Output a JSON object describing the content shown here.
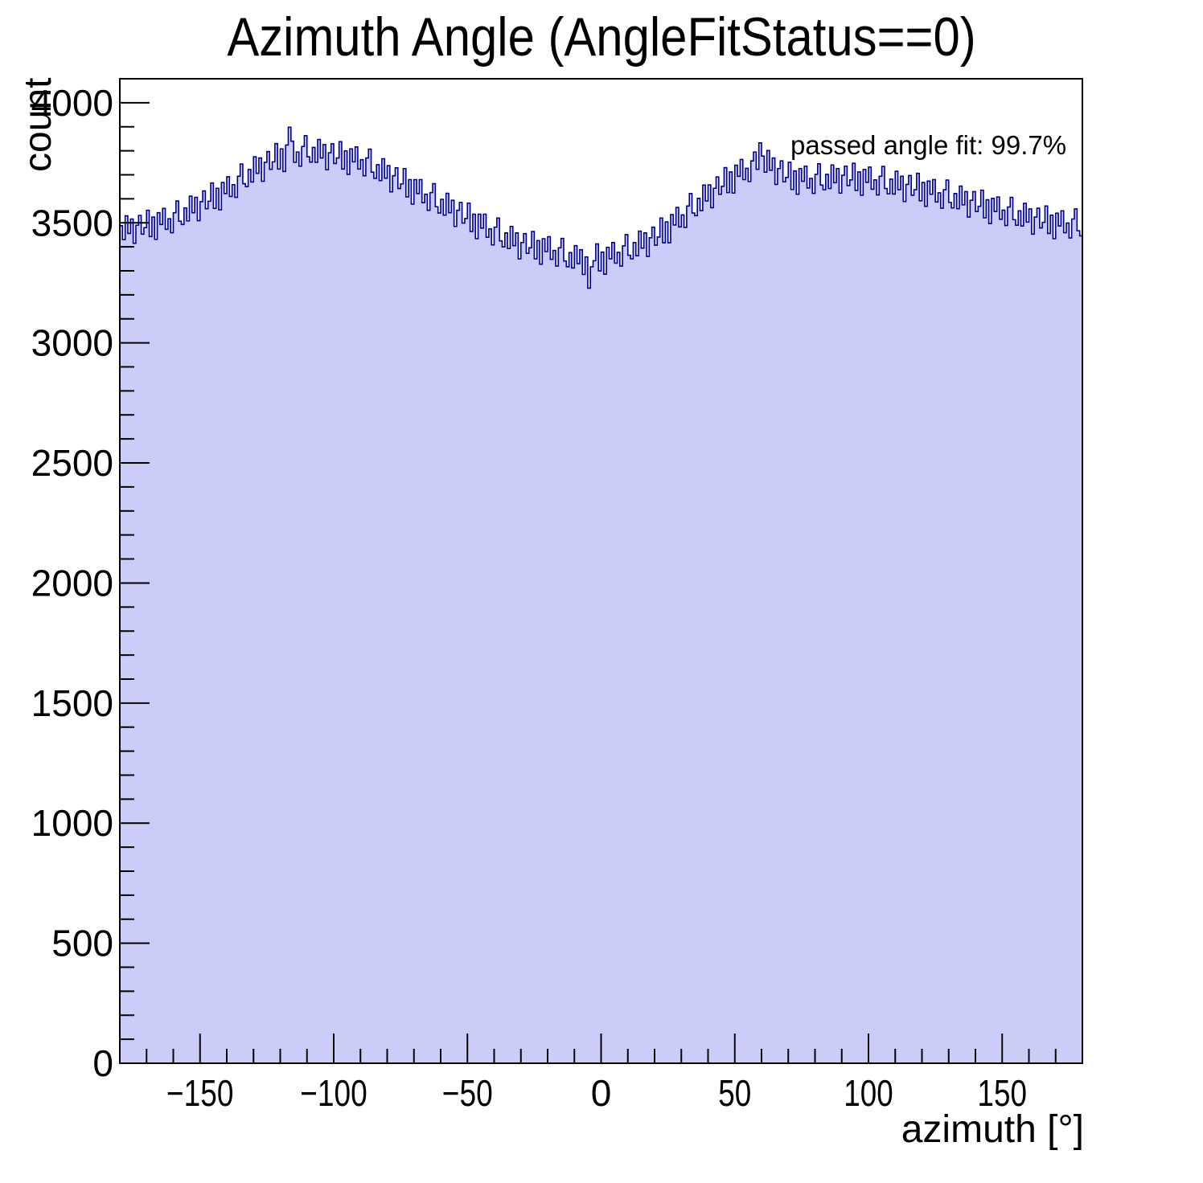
{
  "title": "Azimuth Angle (AngleFitStatus==0)",
  "annotation": "passed angle fit: 99.7%",
  "colors": {
    "histogram_fill": "#ccccf8",
    "histogram_line": "#000090",
    "frame": "#000000",
    "text": "#000000",
    "background": "#ffffff"
  },
  "axes": {
    "x": {
      "label": "azimuth [°]",
      "min": -180,
      "max": 180,
      "major_ticks": [
        -150,
        -100,
        -50,
        0,
        50,
        100,
        150
      ],
      "minor_step": 10
    },
    "y": {
      "label": "count",
      "min": 0,
      "max": 4100,
      "major_ticks": [
        0,
        500,
        1000,
        1500,
        2000,
        2500,
        3000,
        3500,
        4000
      ],
      "minor_step": 100
    }
  },
  "chart_data": {
    "type": "bar",
    "title": "Azimuth Angle (AngleFitStatus==0)",
    "xlabel": "azimuth [°]",
    "ylabel": "count",
    "xlim": [
      -180,
      180
    ],
    "ylim": [
      0,
      4100
    ],
    "grid": false,
    "legend": "none",
    "x_start": -180,
    "bin_width": 1,
    "values": [
      3488,
      3430,
      3529,
      3456,
      3516,
      3415,
      3490,
      3531,
      3453,
      3480,
      3552,
      3443,
      3524,
      3431,
      3542,
      3493,
      3560,
      3473,
      3517,
      3459,
      3542,
      3591,
      3507,
      3493,
      3562,
      3508,
      3611,
      3542,
      3606,
      3509,
      3588,
      3633,
      3559,
      3590,
      3666,
      3560,
      3644,
      3554,
      3668,
      3622,
      3692,
      3610,
      3659,
      3606,
      3694,
      3745,
      3663,
      3651,
      3722,
      3670,
      3775,
      3706,
      3770,
      3673,
      3752,
      3797,
      3723,
      3754,
      3830,
      3724,
      3808,
      3714,
      3824,
      3898,
      3840,
      3752,
      3795,
      3736,
      3818,
      3863,
      3775,
      3753,
      3814,
      3752,
      3847,
      3770,
      3826,
      3721,
      3792,
      3829,
      3747,
      3770,
      3838,
      3724,
      3800,
      3702,
      3808,
      3754,
      3816,
      3724,
      3763,
      3696,
      3770,
      3807,
      3711,
      3685,
      3742,
      3676,
      3767,
      3686,
      3738,
      3629,
      3696,
      3729,
      3643,
      3662,
      3726,
      3608,
      3680,
      3578,
      3680,
      3622,
      3680,
      3584,
      3619,
      3552,
      3626,
      3663,
      3567,
      3541,
      3598,
      3532,
      3623,
      3542,
      3594,
      3485,
      3552,
      3585,
      3499,
      3518,
      3582,
      3464,
      3536,
      3434,
      3536,
      3478,
      3536,
      3440,
      3475,
      3408,
      3482,
      3520,
      3425,
      3400,
      3458,
      3393,
      3485,
      3405,
      3458,
      3350,
      3418,
      3455,
      3373,
      3396,
      3464,
      3350,
      3426,
      3328,
      3434,
      3380,
      3442,
      3348,
      3385,
      3320,
      3396,
      3435,
      3341,
      3317,
      3376,
      3312,
      3405,
      3330,
      3388,
      3285,
      3358,
      3228,
      3317,
      3342,
      3412,
      3300,
      3378,
      3286,
      3398,
      3350,
      3418,
      3332,
      3377,
      3320,
      3404,
      3451,
      3365,
      3350,
      3418,
      3363,
      3465,
      3395,
      3458,
      3360,
      3438,
      3482,
      3407,
      3441,
      3520,
      3417,
      3504,
      3417,
      3534,
      3491,
      3564,
      3483,
      3533,
      3481,
      3570,
      3622,
      3541,
      3530,
      3602,
      3551,
      3657,
      3591,
      3658,
      3563,
      3644,
      3691,
      3619,
      3652,
      3730,
      3626,
      3712,
      3624,
      3740,
      3694,
      3764,
      3680,
      3727,
      3672,
      3758,
      3795,
      3723,
      3833,
      3778,
      3711,
      3801,
      3719,
      3770,
      3660,
      3726,
      3758,
      3671,
      3689,
      3752,
      3639,
      3716,
      3619,
      3726,
      3673,
      3736,
      3645,
      3685,
      3623,
      3702,
      3746,
      3657,
      3638,
      3702,
      3643,
      3741,
      3667,
      3726,
      3624,
      3698,
      3736,
      3655,
      3679,
      3748,
      3635,
      3712,
      3615,
      3722,
      3669,
      3732,
      3640,
      3679,
      3616,
      3694,
      3735,
      3643,
      3621,
      3682,
      3620,
      3715,
      3638,
      3694,
      3589,
      3660,
      3697,
      3615,
      3638,
      3706,
      3592,
      3668,
      3569,
      3674,
      3619,
      3680,
      3587,
      3625,
      3561,
      3638,
      3678,
      3585,
      3562,
      3622,
      3559,
      3653,
      3575,
      3630,
      3524,
      3594,
      3630,
      3547,
      3569,
      3636,
      3521,
      3596,
      3497,
      3602,
      3547,
      3608,
      3515,
      3553,
      3489,
      3566,
      3606,
      3513,
      3490,
      3550,
      3487,
      3581,
      3503,
      3558,
      3453,
      3524,
      3561,
      3479,
      3502,
      3570,
      3456,
      3532,
      3434,
      3540,
      3487,
      3550,
      3459,
      3499,
      3437,
      3516,
      3558,
      3467,
      3446
    ]
  }
}
